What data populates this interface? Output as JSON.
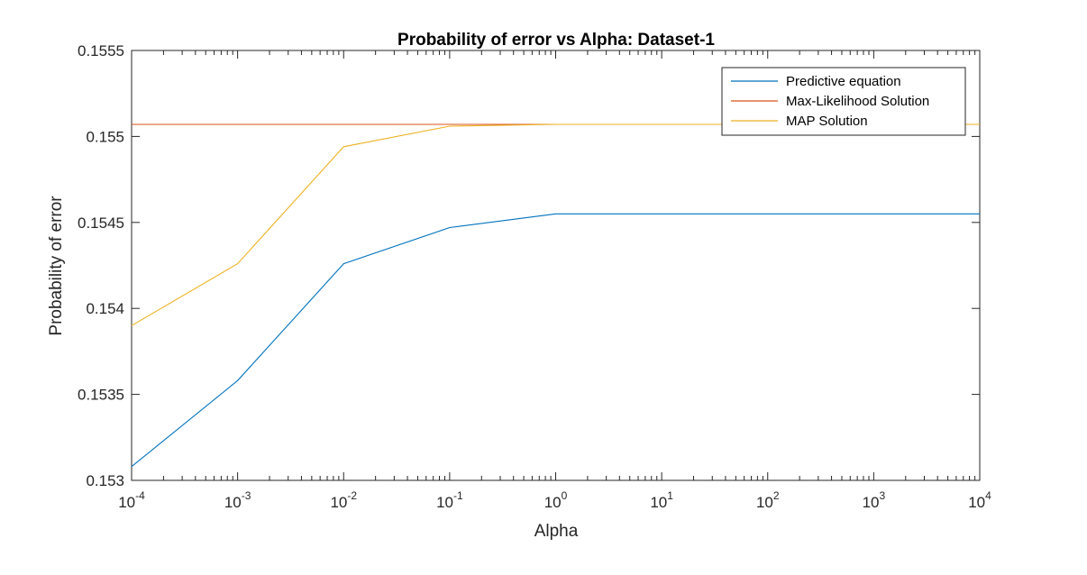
{
  "chart_data": {
    "type": "line",
    "title": "Probability of error vs Alpha: Dataset-1",
    "xlabel": "Alpha",
    "ylabel": "Probability of error",
    "xscale": "log",
    "xlim": [
      0.0001,
      10000
    ],
    "ylim": [
      0.153,
      0.1555
    ],
    "x_ticks": [
      {
        "base": "10",
        "exp": "-4"
      },
      {
        "base": "10",
        "exp": "-3"
      },
      {
        "base": "10",
        "exp": "-2"
      },
      {
        "base": "10",
        "exp": "-1"
      },
      {
        "base": "10",
        "exp": "0"
      },
      {
        "base": "10",
        "exp": "1"
      },
      {
        "base": "10",
        "exp": "2"
      },
      {
        "base": "10",
        "exp": "3"
      },
      {
        "base": "10",
        "exp": "4"
      }
    ],
    "y_ticks": [
      "0.153",
      "0.1535",
      "0.154",
      "0.1545",
      "0.155",
      "0.1555"
    ],
    "grid": false,
    "legend_position": "top-right",
    "x": [
      0.0001,
      0.001,
      0.01,
      0.1,
      1,
      10,
      100,
      1000,
      10000
    ],
    "series": [
      {
        "name": "Predictive equation",
        "color": "#0072BD",
        "values": [
          0.15308,
          0.15358,
          0.15426,
          0.15447,
          0.15455,
          0.15455,
          0.15455,
          0.15455,
          0.15455
        ]
      },
      {
        "name": "Max-Likelihood Solution",
        "color": "#D95319",
        "values": [
          0.15507,
          0.15507,
          0.15507,
          0.15507,
          0.15507,
          0.15507,
          0.15507,
          0.15507,
          0.15507
        ]
      },
      {
        "name": "MAP Solution",
        "color": "#EDB120",
        "values": [
          0.1539,
          0.15426,
          0.15494,
          0.15506,
          0.15507,
          0.15507,
          0.15507,
          0.15507,
          0.15507
        ]
      }
    ]
  }
}
